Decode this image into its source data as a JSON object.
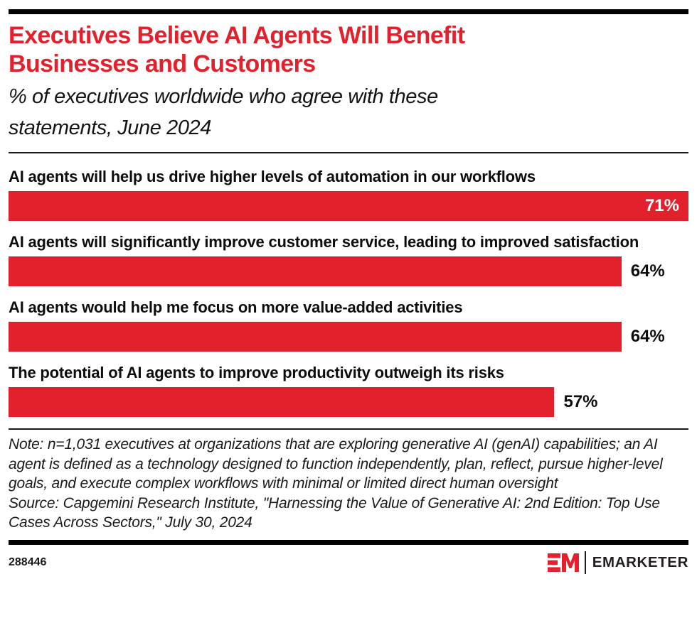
{
  "header": {
    "title_lines": [
      "Executives Believe AI Agents Will Benefit",
      "Businesses and Customers"
    ],
    "subtitle_lines": [
      "% of executives worldwide who agree with these",
      "statements, June 2024"
    ]
  },
  "chart_data": {
    "type": "bar",
    "orientation": "horizontal",
    "title": "Executives Believe AI Agents Will Benefit Businesses and Customers",
    "subtitle": "% of executives worldwide who agree with these statements, June 2024",
    "categories": [
      "AI agents will help us drive higher levels of automation in our workflows",
      "AI agents will significantly improve customer service, leading to improved satisfaction",
      "AI agents would help me focus on more value-added activities",
      "The potential of AI agents to improve productivity outweigh its risks"
    ],
    "values": [
      71,
      64,
      64,
      57
    ],
    "value_suffix": "%",
    "xlim": [
      0,
      71
    ],
    "grid": false,
    "legend": "none",
    "bar_color": "#e3212d"
  },
  "notes": {
    "note": "Note: n=1,031 executives at organizations that are exploring generative AI (genAI) capabilities; an AI agent is defined as a technology designed to function independently, plan, reflect, pursue higher-level goals, and execute complex workflows with minimal or limited direct human oversight",
    "source": "Source: Capgemini Research Institute, \"Harnessing the Value of Generative AI: 2nd Edition: Top Use Cases Across Sectors,\" July 30, 2024"
  },
  "footer": {
    "chart_id": "288446",
    "brand": "EMARKETER"
  },
  "colors": {
    "accent_red": "#e3212d",
    "ink": "#0d0d0d"
  }
}
